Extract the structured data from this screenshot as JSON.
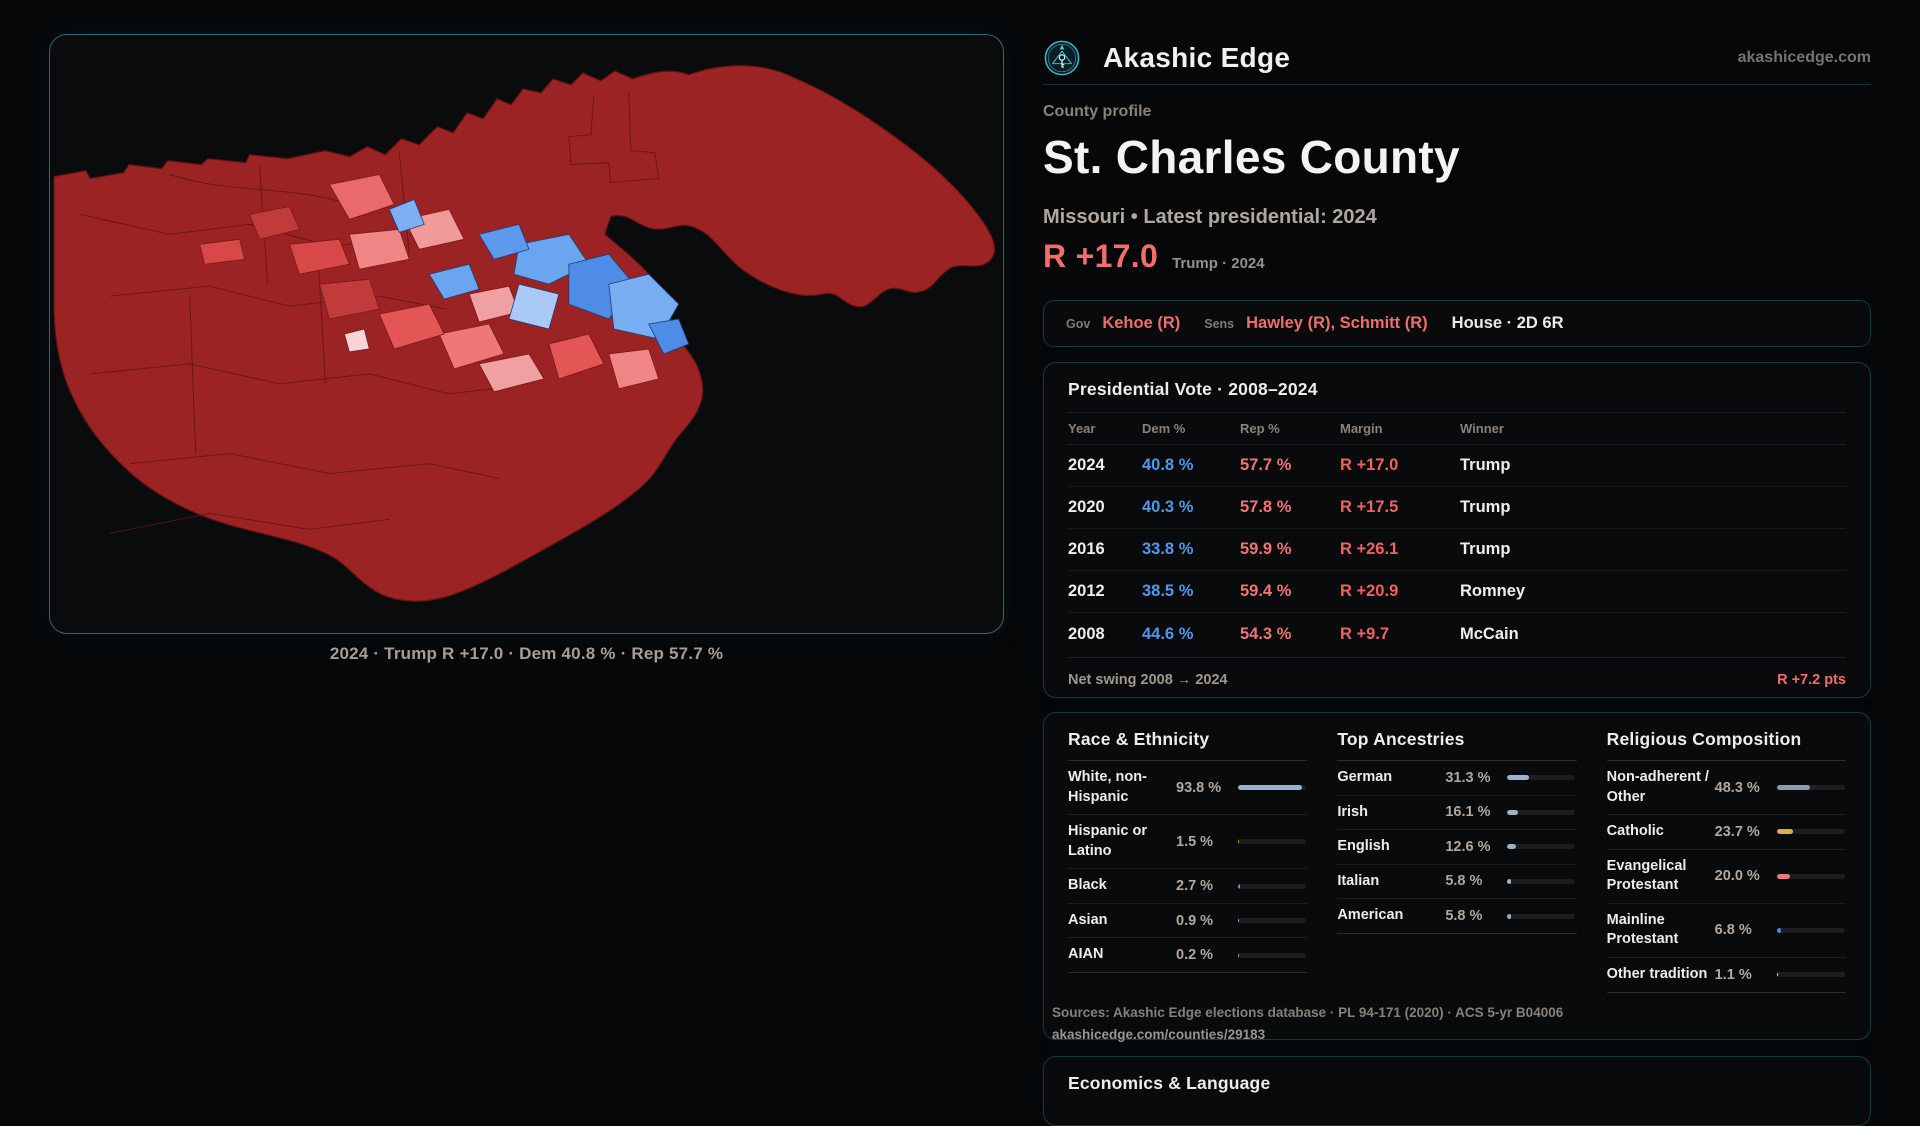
{
  "brand": {
    "name": "Akashic Edge",
    "domain": "akashicedge.com"
  },
  "map": {
    "caption": "2024 · Trump R +17.0 · Dem 40.8 % · Rep 57.7 %"
  },
  "profile": {
    "kicker": "County profile",
    "title": "St. Charles County",
    "subtitle": "Missouri • Latest presidential: 2024",
    "margin_big": "R +17.0",
    "margin_context": "Trump · 2024"
  },
  "officials": {
    "gov_label": "Gov",
    "gov": "Kehoe (R)",
    "sens_label": "Sens",
    "sens": "Hawley (R), Schmitt (R)",
    "house": "House · 2D 6R"
  },
  "presidential": {
    "title": "Presidential Vote · 2008–2024",
    "columns": [
      "Year",
      "Dem %",
      "Rep %",
      "Margin",
      "Winner"
    ],
    "rows": [
      {
        "year": "2024",
        "dem": "40.8 %",
        "rep": "57.7 %",
        "margin": "R +17.0",
        "winner": "Trump"
      },
      {
        "year": "2020",
        "dem": "40.3 %",
        "rep": "57.8 %",
        "margin": "R +17.5",
        "winner": "Trump"
      },
      {
        "year": "2016",
        "dem": "33.8 %",
        "rep": "59.9 %",
        "margin": "R +26.1",
        "winner": "Trump"
      },
      {
        "year": "2012",
        "dem": "38.5 %",
        "rep": "59.4 %",
        "margin": "R +20.9",
        "winner": "Romney"
      },
      {
        "year": "2008",
        "dem": "44.6 %",
        "rep": "54.3 %",
        "margin": "R +9.7",
        "winner": "McCain"
      }
    ],
    "net_swing_label": "Net swing 2008 → 2024",
    "net_swing_value": "R +7.2 pts"
  },
  "demographics": {
    "columns": [
      {
        "key": "race",
        "title": "Race & Ethnicity",
        "rows": [
          {
            "label": "White, non-Hispanic",
            "value": "93.8 %",
            "pct": 93.8,
            "color": "#9db1c9"
          },
          {
            "label": "Hispanic or Latino",
            "value": "1.5 %",
            "pct": 1.5,
            "color": "#e2962f"
          },
          {
            "label": "Black",
            "value": "2.7 %",
            "pct": 2.7,
            "color": "#8f7ae8"
          },
          {
            "label": "Asian",
            "value": "0.9 %",
            "pct": 0.9,
            "color": "#9db1c9"
          },
          {
            "label": "AIAN",
            "value": "0.2 %",
            "pct": 0.2,
            "color": "#9db1c9"
          }
        ]
      },
      {
        "key": "ancestries",
        "title": "Top Ancestries",
        "rows": [
          {
            "label": "German",
            "value": "31.3 %",
            "pct": 31.3,
            "color": "#9db1c9"
          },
          {
            "label": "Irish",
            "value": "16.1 %",
            "pct": 16.1,
            "color": "#9db1c9"
          },
          {
            "label": "English",
            "value": "12.6 %",
            "pct": 12.6,
            "color": "#9db1c9"
          },
          {
            "label": "Italian",
            "value": "5.8 %",
            "pct": 5.8,
            "color": "#9db1c9"
          },
          {
            "label": "American",
            "value": "5.8 %",
            "pct": 5.8,
            "color": "#9db1c9"
          }
        ]
      },
      {
        "key": "religion",
        "title": "Religious Composition",
        "rows": [
          {
            "label": "Non-adherent / Other",
            "value": "48.3 %",
            "pct": 48.3,
            "color": "#8e99a9"
          },
          {
            "label": "Catholic",
            "value": "23.7 %",
            "pct": 23.7,
            "color": "#dfaf3a"
          },
          {
            "label": "Evangelical Protestant",
            "value": "20.0 %",
            "pct": 20.0,
            "color": "#e87b7b"
          },
          {
            "label": "Mainline Protestant",
            "value": "6.8 %",
            "pct": 6.8,
            "color": "#3f8df0"
          },
          {
            "label": "Other tradition",
            "value": "1.1 %",
            "pct": 1.1,
            "color": "#e8e8e8"
          }
        ]
      }
    ]
  },
  "sources": {
    "line1": "Sources: Akashic Edge elections database · PL 94-171 (2020) · ACS 5-yr B04006",
    "line2": "akashicedge.com/counties/29183"
  },
  "economics": {
    "title": "Economics & Language"
  },
  "colors": {
    "accent_teal": "#2a6a75",
    "rep_red": "#ef6d6d",
    "dem_blue": "#4f97ea",
    "map_base_red": "#9b2323"
  }
}
